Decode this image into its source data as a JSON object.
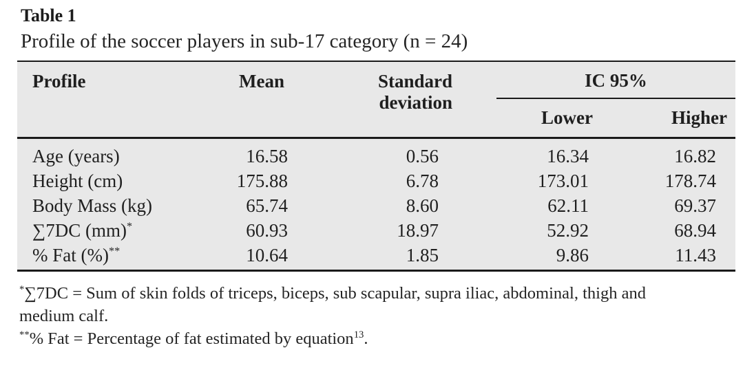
{
  "header": {
    "label": "Table 1",
    "caption": "Profile of the soccer players in sub-17 category (n = 24)"
  },
  "table": {
    "headers": {
      "profile": "Profile",
      "mean": "Mean",
      "sd": "Standard deviation",
      "ic": "IC 95%",
      "lower": "Lower",
      "higher": "Higher"
    },
    "rows": [
      {
        "label": "Age (years)",
        "sup": "",
        "mean": "16.58",
        "sd": "0.56",
        "lower": "16.34",
        "higher": "16.82"
      },
      {
        "label": "Height (cm)",
        "sup": "",
        "mean": "175.88",
        "sd": "6.78",
        "lower": "173.01",
        "higher": "178.74"
      },
      {
        "label": "Body Mass (kg)",
        "sup": "",
        "mean": "65.74",
        "sd": "8.60",
        "lower": "62.11",
        "higher": "69.37"
      },
      {
        "label": "∑7DC (mm)",
        "sup": "*",
        "mean": "60.93",
        "sd": "18.97",
        "lower": "52.92",
        "higher": "68.94"
      },
      {
        "label": "% Fat (%)",
        "sup": "**",
        "mean": "10.64",
        "sd": "1.85",
        "lower": "9.86",
        "higher": "11.43"
      }
    ]
  },
  "footnotes": {
    "note1_sup": "*",
    "note1_line1": "∑7DC = Sum of skin folds of triceps, biceps, sub scapular, supra iliac, abdominal, thigh and",
    "note1_line2": "medium calf.",
    "note2_sup": "**",
    "note2_text": "% Fat = Percentage of fat estimated by equation",
    "note2_ref": "13",
    "note2_tail": "."
  },
  "colors": {
    "table_background": "#e8e8e8",
    "rule": "#1a1a1a",
    "text": "#1f1f1f"
  }
}
